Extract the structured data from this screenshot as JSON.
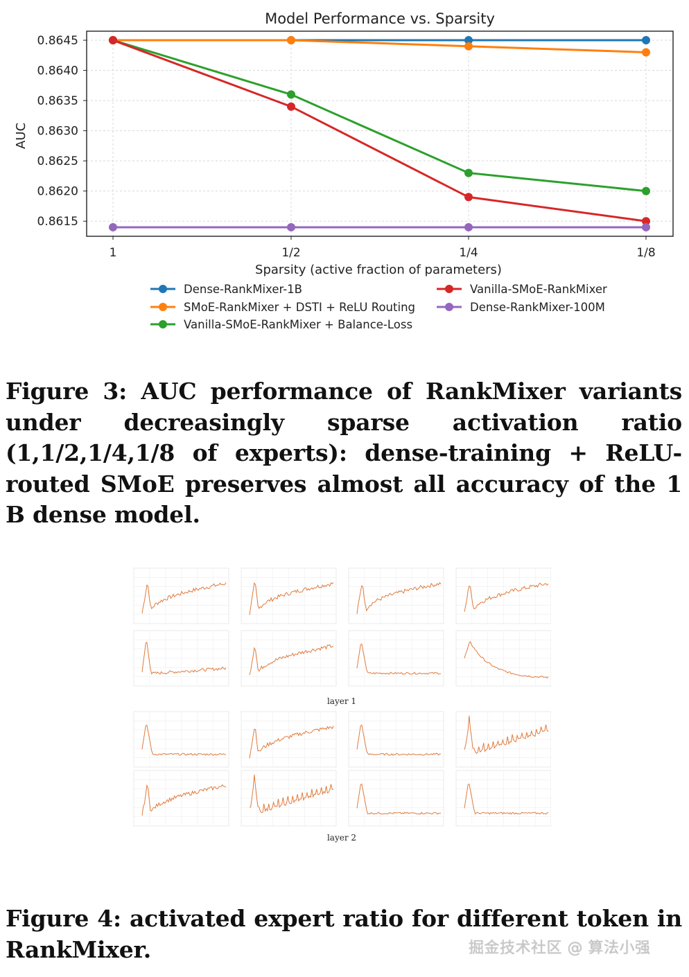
{
  "chart_data": {
    "type": "line",
    "title": "Model Performance vs. Sparsity",
    "xlabel": "Sparsity (active fraction of parameters)",
    "ylabel": "AUC",
    "categories": [
      "1",
      "1/2",
      "1/4",
      "1/8"
    ],
    "yticks": [
      "0.8615",
      "0.8620",
      "0.8625",
      "0.8630",
      "0.8635",
      "0.8640",
      "0.8645"
    ],
    "ylim": [
      0.86125,
      0.86465
    ],
    "grid": true,
    "legend_placement": "below",
    "series": [
      {
        "name": "Dense-RankMixer-1B",
        "color": "#1f77b4",
        "values": [
          0.8645,
          0.8645,
          0.8645,
          0.8645
        ]
      },
      {
        "name": "SMoE-RankMixer + DSTI + ReLU Routing",
        "color": "#ff7f0e",
        "values": [
          0.8645,
          0.8645,
          0.8644,
          0.8643
        ]
      },
      {
        "name": "Vanilla-SMoE-RankMixer + Balance-Loss",
        "color": "#2ca02c",
        "values": [
          0.8645,
          0.8636,
          0.8623,
          0.862
        ]
      },
      {
        "name": "Vanilla-SMoE-RankMixer",
        "color": "#d62728",
        "values": [
          0.8645,
          0.8634,
          0.8619,
          0.8615
        ]
      },
      {
        "name": "Dense-RankMixer-100M",
        "color": "#9467bd",
        "values": [
          0.8614,
          0.8614,
          0.8614,
          0.8614
        ]
      }
    ]
  },
  "figure3": {
    "label": "Figure 3:",
    "caption": "AUC performance of RankMixer variants under decreasingly sparse activation ratio (1,1/2,1/4,1/8 of experts): dense-training + ReLU-routed SMoE preserves almost all accuracy of the 1 B dense model."
  },
  "figure4": {
    "label": "Figure 4:",
    "caption": "activated expert ratio for different token in RankMixer.",
    "layer_labels": [
      "layer 1",
      "layer 2"
    ],
    "line_color": "#e07a3c"
  },
  "watermark": "掘金技术社区 @ 算法小强"
}
